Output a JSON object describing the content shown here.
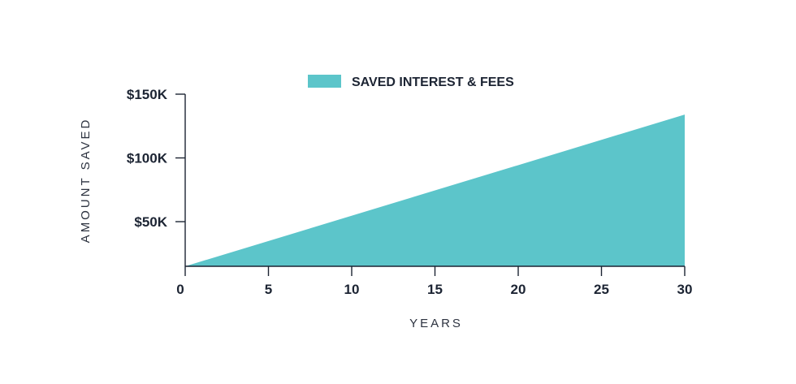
{
  "colors": {
    "area": "#5cc5ca",
    "axis": "#1c2433"
  },
  "chart_data": {
    "type": "area",
    "xlabel": "YEARS",
    "ylabel": "AMOUNT SAVED",
    "x_ticks": [
      0,
      5,
      10,
      15,
      20,
      25,
      30
    ],
    "x_tick_labels": [
      "0",
      "5",
      "10",
      "15",
      "20",
      "25",
      "30"
    ],
    "y_ticks": [
      50000,
      100000,
      150000
    ],
    "y_tick_labels": [
      "$50K",
      "$100K",
      "$150K"
    ],
    "xlim": [
      0,
      30
    ],
    "ylim": [
      15000,
      150000
    ],
    "grid": false,
    "legend_position": "top",
    "series": [
      {
        "name": "SAVED INTEREST & FEES",
        "x": [
          0,
          30
        ],
        "y": [
          15000,
          134000
        ]
      }
    ]
  }
}
